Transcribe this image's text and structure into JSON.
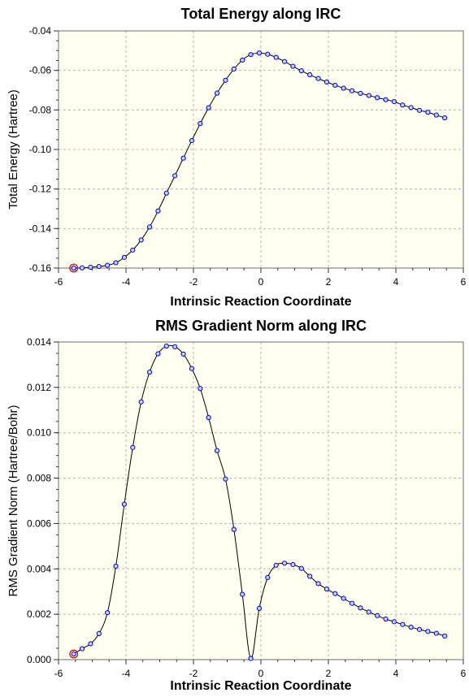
{
  "chart_data": [
    {
      "type": "line",
      "title": "Total Energy along IRC",
      "xlabel": "Intrinsic Reaction Coordinate",
      "ylabel": "Total Energy (Hartree)",
      "xlim": [
        -6,
        6
      ],
      "ylim": [
        -0.16,
        -0.04
      ],
      "x_ticks": [
        -6,
        -4,
        -2,
        0,
        2,
        4,
        6
      ],
      "y_ticks": [
        -0.04,
        -0.06,
        -0.08,
        -0.1,
        -0.12,
        -0.14,
        -0.16
      ],
      "x_tick_labels": [
        "-6",
        "-4",
        "-2",
        "0",
        "2",
        "4",
        "6"
      ],
      "y_tick_labels": [
        "-0.04",
        "-0.06",
        "-0.08",
        "-0.10",
        "-0.12",
        "-0.14",
        "-0.16"
      ],
      "grid": true,
      "series": [
        {
          "color": "#0000cc",
          "line_color": "#000000",
          "x": [
            -5.55,
            -5.3,
            -5.05,
            -4.8,
            -4.55,
            -4.3,
            -4.05,
            -3.8,
            -3.55,
            -3.3,
            -3.05,
            -2.8,
            -2.55,
            -2.3,
            -2.05,
            -1.8,
            -1.55,
            -1.3,
            -1.05,
            -0.8,
            -0.55,
            -0.3,
            -0.05,
            0.2,
            0.45,
            0.7,
            0.95,
            1.2,
            1.45,
            1.7,
            1.95,
            2.2,
            2.45,
            2.7,
            2.95,
            3.2,
            3.45,
            3.7,
            3.95,
            4.2,
            4.45,
            4.7,
            4.95,
            5.2,
            5.45
          ],
          "y": [
            -0.16,
            -0.1599,
            -0.1596,
            -0.1592,
            -0.1586,
            -0.1573,
            -0.1546,
            -0.1509,
            -0.1458,
            -0.1392,
            -0.1311,
            -0.1221,
            -0.1133,
            -0.1044,
            -0.0955,
            -0.0869,
            -0.0789,
            -0.0715,
            -0.065,
            -0.0593,
            -0.0548,
            -0.052,
            -0.0512,
            -0.0518,
            -0.0534,
            -0.0555,
            -0.0579,
            -0.0602,
            -0.0622,
            -0.0641,
            -0.0659,
            -0.0675,
            -0.069,
            -0.0703,
            -0.0716,
            -0.0727,
            -0.0738,
            -0.0748,
            -0.0758,
            -0.0775,
            -0.0788,
            -0.0802,
            -0.0812,
            -0.0826,
            -0.084
          ],
          "highlight_index": 0
        }
      ]
    },
    {
      "type": "line",
      "title": "RMS Gradient Norm along IRC",
      "xlabel": "Intrinsic Reaction Coordinate",
      "ylabel": "RMS Gradient Norm (Hartree/Bohr)",
      "xlim": [
        -6,
        6
      ],
      "ylim": [
        0,
        0.014
      ],
      "x_ticks": [
        -6,
        -4,
        -2,
        0,
        2,
        4,
        6
      ],
      "y_ticks": [
        0.014,
        0.012,
        0.01,
        0.008,
        0.006,
        0.004,
        0.002,
        0
      ],
      "x_tick_labels": [
        "-6",
        "-4",
        "-2",
        "0",
        "2",
        "4",
        "6"
      ],
      "y_tick_labels": [
        "0.014",
        "0.012",
        "0.010",
        "0.008",
        "0.006",
        "0.004",
        "0.002",
        "0.000"
      ],
      "grid": true,
      "series": [
        {
          "color": "#0000cc",
          "line_color": "#000000",
          "x": [
            -5.55,
            -5.3,
            -5.05,
            -4.8,
            -4.55,
            -4.3,
            -4.05,
            -3.8,
            -3.55,
            -3.3,
            -3.05,
            -2.8,
            -2.55,
            -2.3,
            -2.05,
            -1.8,
            -1.55,
            -1.3,
            -1.05,
            -0.8,
            -0.55,
            -0.3,
            -0.05,
            0.2,
            0.45,
            0.7,
            0.95,
            1.2,
            1.45,
            1.7,
            1.95,
            2.2,
            2.45,
            2.7,
            2.95,
            3.2,
            3.45,
            3.7,
            3.95,
            4.2,
            4.45,
            4.7,
            4.95,
            5.2,
            5.45
          ],
          "y": [
            0.00025,
            0.00048,
            0.0007,
            0.00115,
            0.00207,
            0.00412,
            0.00685,
            0.00935,
            0.01136,
            0.01267,
            0.01348,
            0.01382,
            0.01379,
            0.01347,
            0.01283,
            0.01195,
            0.01067,
            0.00921,
            0.00796,
            0.00574,
            0.00288,
            5e-05,
            0.00226,
            0.00362,
            0.00416,
            0.00425,
            0.00419,
            0.00402,
            0.00367,
            0.00335,
            0.00311,
            0.00291,
            0.0027,
            0.00248,
            0.00228,
            0.0021,
            0.00194,
            0.00179,
            0.00167,
            0.00155,
            0.00143,
            0.00133,
            0.00124,
            0.00116,
            0.00104
          ],
          "highlight_index": 0
        }
      ]
    }
  ]
}
